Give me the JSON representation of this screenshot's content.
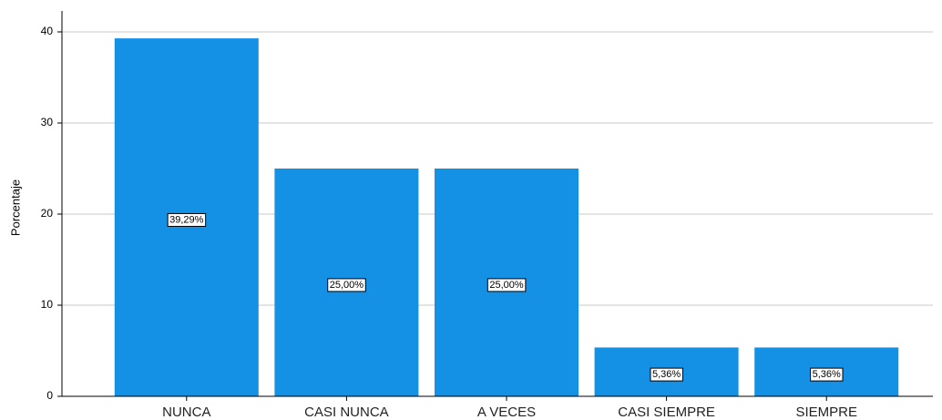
{
  "chart_data": {
    "type": "bar",
    "y_label": "Porcentaje",
    "categories": [
      "NUNCA",
      "CASI NUNCA",
      "A VECES",
      "CASI SIEMPRE",
      "SIEMPRE"
    ],
    "values": [
      39.29,
      25.0,
      25.0,
      5.36,
      5.36
    ],
    "value_labels": [
      "39,29%",
      "25,00%",
      "25,00%",
      "5,36%",
      "5,36%"
    ],
    "color": "#1490e5",
    "ylim": [
      0,
      42.3
    ],
    "yticks": [
      0,
      10,
      20,
      30,
      40
    ],
    "grid": true
  }
}
